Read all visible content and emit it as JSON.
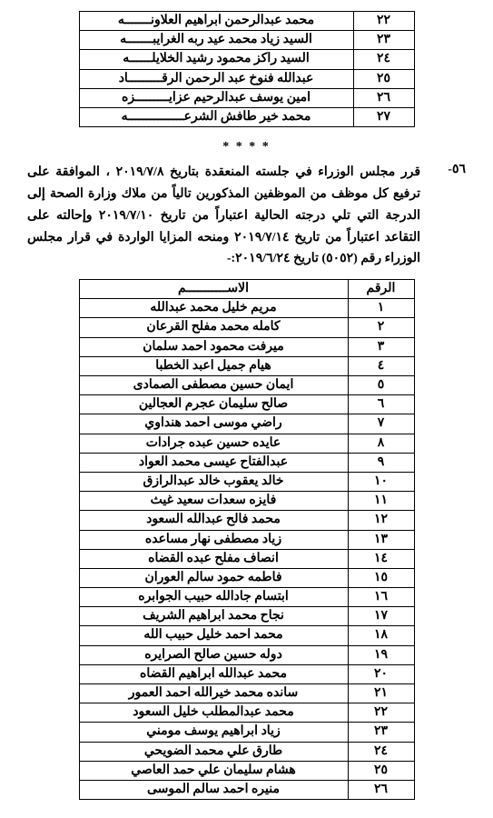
{
  "topTable": {
    "rows": [
      {
        "num": "٢٢",
        "name": "محمد عبدالرحمن ابراهيم العلاونـــــــه"
      },
      {
        "num": "٢٣",
        "name": "السيد زياد محمد عيد ربه الغرايبـــــــه"
      },
      {
        "num": "٢٤",
        "name": "السيد راكز محمود رشيد الخلايلــــــه"
      },
      {
        "num": "٢٥",
        "name": "عبدالله فنوخ عبد الرحمن الرقـــــــــاد"
      },
      {
        "num": "٢٦",
        "name": "امين يوسف عبدالرحيم عزايـــــــــزه"
      },
      {
        "num": "٢٧",
        "name": "محمد خير طافش الشرعـــــــــــــــه"
      }
    ]
  },
  "divider": "*   *   *   *",
  "section": {
    "number": "٥٦-",
    "text": "قرر مجلس الوزراء في جلسته المنعقدة بتاريخ ٢٠١٩/٧/٨ ، الموافقة على ترفيع كل موظف من الموظفين المذكورين تالياً من ملاك وزارة الصحة إلى الدرجة التي تلي درجته الحالية اعتباراً من تاريخ ٢٠١٩/٧/١٠ وإحالته على التقاعد اعتباراً من تاريخ ٢٠١٩/٧/١٤ ومنحه المزايا الواردة في قرار مجلس الوزراء رقم (٥٠٥٢) تاريخ ٢٠١٩/٦/٢٤:-"
  },
  "bottomTable": {
    "headers": {
      "num": "الرقم",
      "name": "الاســـــــــــم"
    },
    "rows": [
      {
        "num": "١",
        "name": "مريم خليل محمد عبدالله"
      },
      {
        "num": "٢",
        "name": "كامله محمد مفلح القرعان"
      },
      {
        "num": "٣",
        "name": "ميرفت محمود احمد سلمان"
      },
      {
        "num": "٤",
        "name": "هيام جميل اعبد الخطبا"
      },
      {
        "num": "٥",
        "name": "ايمان حسين مصطفى الصمادى"
      },
      {
        "num": "٦",
        "name": "صالح سليمان عجرم العجالين"
      },
      {
        "num": "٧",
        "name": "راضي موسى احمد هنداوي"
      },
      {
        "num": "٨",
        "name": "عايده حسين عبده جرادات"
      },
      {
        "num": "٩",
        "name": "عبدالفتاح عيسى محمد العواد"
      },
      {
        "num": "١٠",
        "name": "خالد يعقوب خالد عبدالرازق"
      },
      {
        "num": "١١",
        "name": "فايزه سعدات سعيد غيث"
      },
      {
        "num": "١٢",
        "name": "محمد فالح عبدالله السعود"
      },
      {
        "num": "١٣",
        "name": "زياد مصطفى نهار مساعده"
      },
      {
        "num": "١٤",
        "name": "انصاف مفلح عبده القضاه"
      },
      {
        "num": "١٥",
        "name": "فاطمه حمود سالم العوران"
      },
      {
        "num": "١٦",
        "name": "ابتسام جادالله حبيب الجوابره"
      },
      {
        "num": "١٧",
        "name": "نجاح محمد ابراهيم الشريف"
      },
      {
        "num": "١٨",
        "name": "محمد احمد خليل حبيب الله"
      },
      {
        "num": "١٩",
        "name": "دوله حسين صالح الصرايره"
      },
      {
        "num": "٢٠",
        "name": "محمد عبدالله ابراهيم القضاه"
      },
      {
        "num": "٢١",
        "name": "سانده محمد خيرالله احمد العمور"
      },
      {
        "num": "٢٢",
        "name": "محمد عبدالمطلب خليل السعود"
      },
      {
        "num": "٢٣",
        "name": "زياد ابراهيم يوسف مومني"
      },
      {
        "num": "٢٤",
        "name": "طارق علي محمد الضويحي"
      },
      {
        "num": "٢٥",
        "name": "هشام سليمان علي حمد العاصي"
      },
      {
        "num": "٢٦",
        "name": "منيره احمد سالم الموسى"
      }
    ]
  }
}
